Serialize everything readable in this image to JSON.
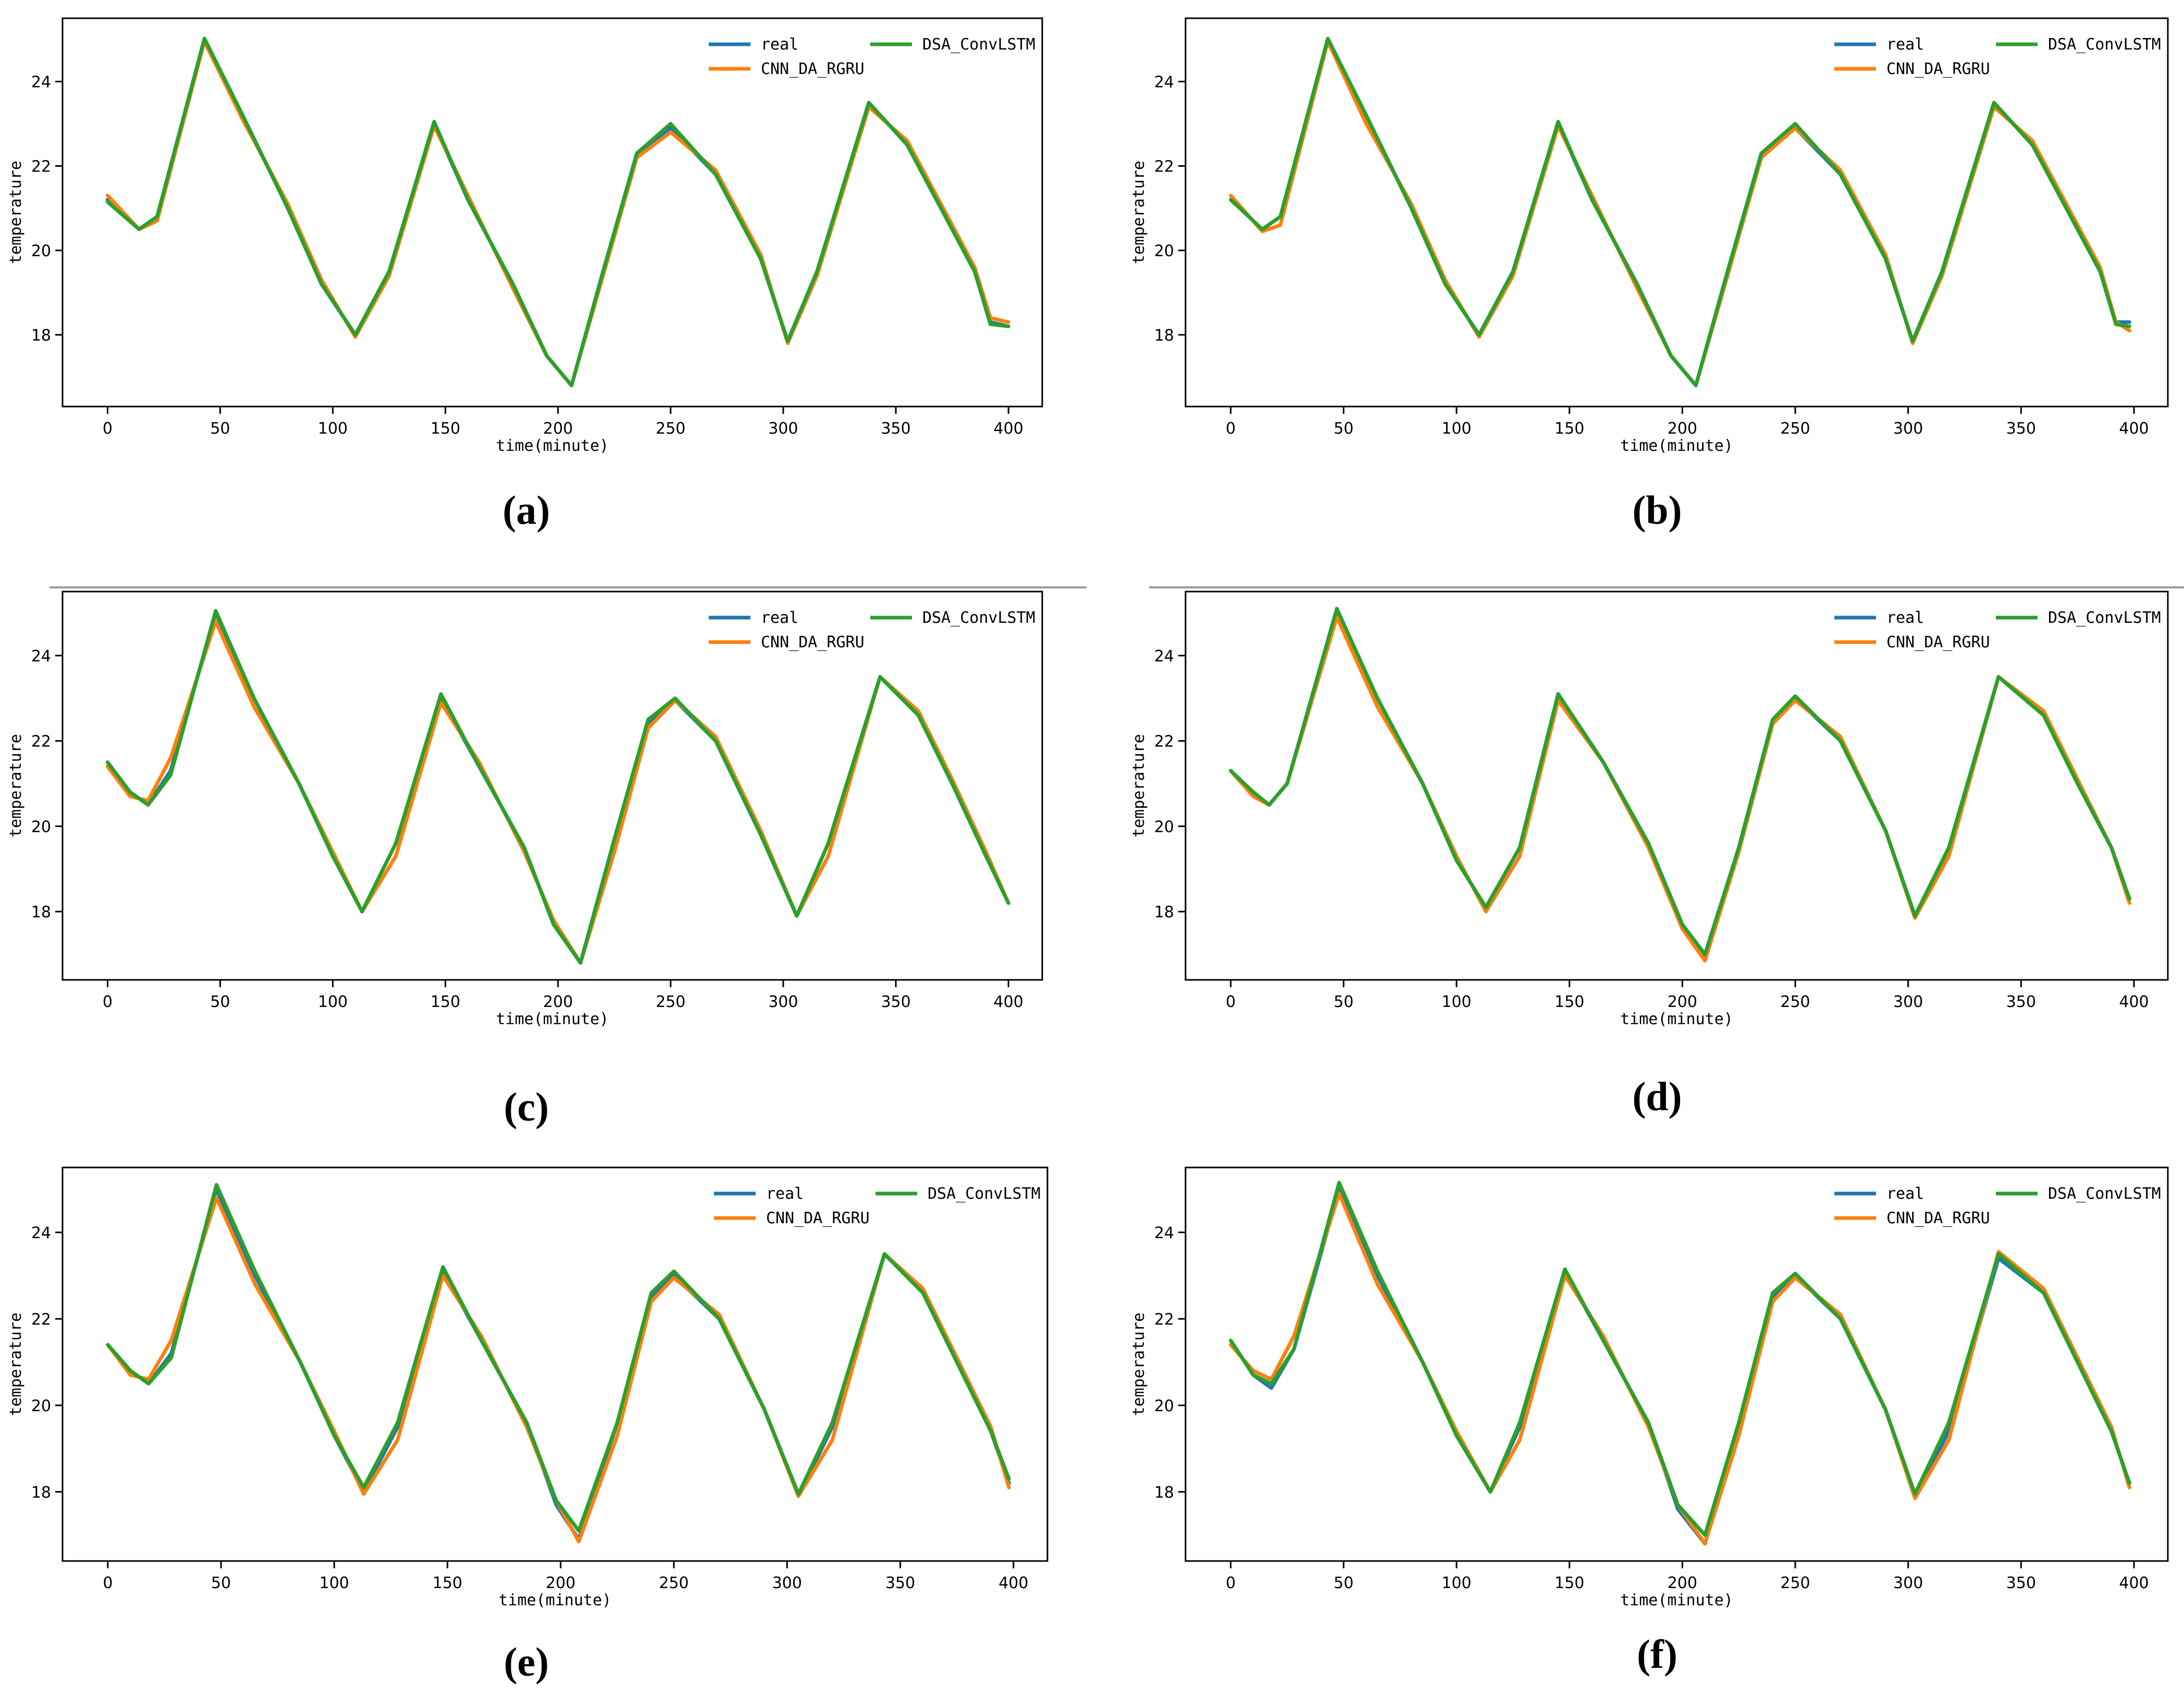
{
  "colors": {
    "real": "#1f77b4",
    "cnn": "#ff7f0e",
    "dsa": "#2ca02c",
    "axis": "#000000",
    "separator": "#9a9a9a"
  },
  "chart_data": [
    {
      "type": "line",
      "panel": "(a)",
      "xlabel": "time(minute)",
      "ylabel": "temperature",
      "xlim": [
        -20,
        415
      ],
      "ylim": [
        16.3,
        25.5
      ],
      "xticks": [
        0,
        50,
        100,
        150,
        200,
        250,
        300,
        350,
        400
      ],
      "yticks": [
        18,
        20,
        22,
        24
      ],
      "grid": false,
      "legend": "top-right",
      "legend_entries": [
        "real",
        "CNN_DA_RGRU",
        "DSA_ConvLSTM"
      ],
      "x": [
        0,
        14,
        22,
        43,
        60,
        80,
        95,
        110,
        125,
        145,
        160,
        180,
        195,
        206,
        220,
        235,
        250,
        270,
        290,
        302,
        315,
        338,
        355,
        370,
        385,
        392,
        400
      ],
      "series": [
        {
          "name": "real",
          "values": [
            21.2,
            20.5,
            20.8,
            25.0,
            23.2,
            21.0,
            19.2,
            18.0,
            19.5,
            23.0,
            21.2,
            19.2,
            17.5,
            16.8,
            19.5,
            22.3,
            22.9,
            21.8,
            19.8,
            17.85,
            19.5,
            23.5,
            22.5,
            21.0,
            19.5,
            18.3,
            18.2
          ]
        },
        {
          "name": "CNN_DA_RGRU",
          "values": [
            21.3,
            20.5,
            20.7,
            24.95,
            23.1,
            21.1,
            19.3,
            17.95,
            19.4,
            22.95,
            21.3,
            19.1,
            17.5,
            16.8,
            19.4,
            22.2,
            22.8,
            21.9,
            19.9,
            17.8,
            19.4,
            23.4,
            22.6,
            21.1,
            19.6,
            18.4,
            18.3
          ]
        },
        {
          "name": "DSA_ConvLSTM",
          "values": [
            21.15,
            20.5,
            20.8,
            25.02,
            23.2,
            21.0,
            19.2,
            18.0,
            19.5,
            23.05,
            21.2,
            19.2,
            17.5,
            16.8,
            19.5,
            22.3,
            23.0,
            21.8,
            19.8,
            17.85,
            19.5,
            23.5,
            22.5,
            21.0,
            19.5,
            18.25,
            18.2
          ]
        }
      ]
    },
    {
      "type": "line",
      "panel": "(b)",
      "xlabel": "time(minute)",
      "ylabel": "temperature",
      "xlim": [
        -20,
        415
      ],
      "ylim": [
        16.3,
        25.5
      ],
      "xticks": [
        0,
        50,
        100,
        150,
        200,
        250,
        300,
        350,
        400
      ],
      "yticks": [
        18,
        20,
        22,
        24
      ],
      "grid": false,
      "legend": "top-right",
      "legend_entries": [
        "real",
        "CNN_DA_RGRU",
        "DSA_ConvLSTM"
      ],
      "x": [
        0,
        14,
        22,
        43,
        60,
        80,
        95,
        110,
        125,
        145,
        160,
        180,
        195,
        206,
        220,
        235,
        250,
        270,
        290,
        302,
        315,
        338,
        355,
        370,
        385,
        392,
        398
      ],
      "series": [
        {
          "name": "real",
          "values": [
            21.2,
            20.5,
            20.8,
            25.0,
            23.2,
            21.0,
            19.2,
            18.0,
            19.5,
            23.0,
            21.2,
            19.2,
            17.5,
            16.8,
            19.5,
            22.3,
            22.9,
            21.8,
            19.8,
            17.85,
            19.5,
            23.5,
            22.5,
            21.0,
            19.5,
            18.3,
            18.3
          ]
        },
        {
          "name": "CNN_DA_RGRU",
          "values": [
            21.3,
            20.45,
            20.6,
            24.95,
            23.0,
            21.1,
            19.3,
            17.95,
            19.4,
            22.95,
            21.3,
            19.1,
            17.5,
            16.8,
            19.4,
            22.2,
            22.9,
            21.9,
            19.9,
            17.8,
            19.4,
            23.4,
            22.6,
            21.1,
            19.6,
            18.3,
            18.1
          ]
        },
        {
          "name": "DSA_ConvLSTM",
          "values": [
            21.2,
            20.5,
            20.8,
            25.02,
            23.2,
            21.0,
            19.2,
            18.0,
            19.5,
            23.05,
            21.2,
            19.2,
            17.5,
            16.8,
            19.5,
            22.3,
            23.0,
            21.8,
            19.8,
            17.85,
            19.5,
            23.5,
            22.5,
            21.0,
            19.5,
            18.25,
            18.2
          ]
        }
      ]
    },
    {
      "type": "line",
      "panel": "(c)",
      "xlabel": "time(minute)",
      "ylabel": "temperature",
      "xlim": [
        -20,
        415
      ],
      "ylim": [
        16.4,
        25.5
      ],
      "xticks": [
        0,
        50,
        100,
        150,
        200,
        250,
        300,
        350,
        400
      ],
      "yticks": [
        18,
        20,
        22,
        24
      ],
      "grid": false,
      "legend": "top-right",
      "legend_entries": [
        "real",
        "CNN_DA_RGRU",
        "DSA_ConvLSTM"
      ],
      "x": [
        0,
        10,
        18,
        28,
        48,
        65,
        85,
        100,
        113,
        128,
        148,
        165,
        185,
        198,
        210,
        225,
        240,
        252,
        270,
        290,
        306,
        320,
        343,
        360,
        375,
        390,
        400
      ],
      "series": [
        {
          "name": "real",
          "values": [
            21.5,
            20.8,
            20.5,
            21.3,
            25.0,
            23.0,
            21.0,
            19.3,
            18.0,
            19.6,
            23.0,
            21.4,
            19.5,
            17.7,
            16.8,
            19.7,
            22.4,
            22.95,
            22.0,
            19.8,
            17.9,
            19.6,
            23.5,
            22.6,
            21.0,
            19.3,
            18.2
          ]
        },
        {
          "name": "CNN_DA_RGRU",
          "values": [
            21.4,
            20.7,
            20.6,
            21.6,
            24.8,
            22.8,
            21.0,
            19.4,
            18.0,
            19.3,
            22.9,
            21.5,
            19.4,
            17.8,
            16.8,
            19.4,
            22.3,
            22.95,
            22.1,
            19.9,
            17.9,
            19.3,
            23.5,
            22.7,
            21.1,
            19.4,
            18.2
          ]
        },
        {
          "name": "DSA_ConvLSTM",
          "values": [
            21.5,
            20.8,
            20.5,
            21.2,
            25.05,
            23.0,
            21.0,
            19.3,
            18.0,
            19.6,
            23.1,
            21.4,
            19.5,
            17.7,
            16.8,
            19.7,
            22.5,
            23.0,
            22.0,
            19.8,
            17.9,
            19.6,
            23.5,
            22.6,
            21.0,
            19.3,
            18.2
          ]
        }
      ]
    },
    {
      "type": "line",
      "panel": "(d)",
      "xlabel": "time(minute)",
      "ylabel": "temperature",
      "xlim": [
        -20,
        415
      ],
      "ylim": [
        16.4,
        25.5
      ],
      "xticks": [
        0,
        50,
        100,
        150,
        200,
        250,
        300,
        350,
        400
      ],
      "yticks": [
        18,
        20,
        22,
        24
      ],
      "grid": false,
      "legend": "top-right",
      "legend_entries": [
        "real",
        "CNN_DA_RGRU",
        "DSA_ConvLSTM"
      ],
      "x": [
        0,
        10,
        17,
        25,
        47,
        65,
        85,
        100,
        113,
        128,
        145,
        165,
        185,
        200,
        210,
        225,
        240,
        250,
        270,
        290,
        303,
        318,
        340,
        360,
        375,
        390,
        398
      ],
      "series": [
        {
          "name": "real",
          "values": [
            21.3,
            20.8,
            20.5,
            21.0,
            25.05,
            23.0,
            21.0,
            19.2,
            18.1,
            19.5,
            23.1,
            21.5,
            19.6,
            17.6,
            16.9,
            19.5,
            22.5,
            23.0,
            22.0,
            19.9,
            17.9,
            19.5,
            23.5,
            22.6,
            21.0,
            19.5,
            18.3
          ]
        },
        {
          "name": "CNN_DA_RGRU",
          "values": [
            21.3,
            20.7,
            20.5,
            21.0,
            24.9,
            22.8,
            21.0,
            19.3,
            18.0,
            19.3,
            22.95,
            21.5,
            19.5,
            17.6,
            16.85,
            19.4,
            22.4,
            22.95,
            22.1,
            19.9,
            17.85,
            19.3,
            23.5,
            22.7,
            21.1,
            19.5,
            18.2
          ]
        },
        {
          "name": "DSA_ConvLSTM",
          "values": [
            21.3,
            20.8,
            20.5,
            21.0,
            25.1,
            23.0,
            21.0,
            19.2,
            18.1,
            19.5,
            23.1,
            21.5,
            19.6,
            17.7,
            17.0,
            19.5,
            22.5,
            23.05,
            22.0,
            19.9,
            17.9,
            19.5,
            23.5,
            22.6,
            21.0,
            19.5,
            18.3
          ]
        }
      ]
    },
    {
      "type": "line",
      "panel": "(e)",
      "xlabel": "time(minute)",
      "ylabel": "temperature",
      "xlim": [
        -20,
        415
      ],
      "ylim": [
        16.4,
        25.5
      ],
      "xticks": [
        0,
        50,
        100,
        150,
        200,
        250,
        300,
        350,
        400
      ],
      "yticks": [
        18,
        20,
        22,
        24
      ],
      "grid": false,
      "legend": "top-right",
      "legend_entries": [
        "real",
        "CNN_DA_RGRU",
        "DSA_ConvLSTM"
      ],
      "x": [
        0,
        10,
        18,
        28,
        48,
        65,
        85,
        100,
        113,
        128,
        148,
        165,
        185,
        198,
        208,
        225,
        240,
        250,
        270,
        290,
        305,
        320,
        343,
        360,
        375,
        390,
        398
      ],
      "series": [
        {
          "name": "real",
          "values": [
            21.4,
            20.8,
            20.5,
            21.2,
            25.0,
            23.0,
            21.0,
            19.3,
            18.0,
            19.5,
            23.1,
            21.5,
            19.6,
            17.7,
            16.9,
            19.6,
            22.5,
            23.0,
            22.0,
            19.9,
            17.9,
            19.5,
            23.5,
            22.6,
            21.0,
            19.4,
            18.2
          ]
        },
        {
          "name": "CNN_DA_RGRU",
          "values": [
            21.4,
            20.7,
            20.6,
            21.5,
            24.8,
            22.8,
            21.0,
            19.4,
            17.95,
            19.2,
            23.0,
            21.6,
            19.5,
            17.8,
            16.85,
            19.3,
            22.4,
            22.95,
            22.1,
            19.9,
            17.9,
            19.2,
            23.5,
            22.7,
            21.1,
            19.5,
            18.1
          ]
        },
        {
          "name": "DSA_ConvLSTM",
          "values": [
            21.4,
            20.8,
            20.5,
            21.1,
            25.1,
            23.1,
            21.0,
            19.3,
            18.1,
            19.6,
            23.2,
            21.5,
            19.6,
            17.8,
            17.1,
            19.6,
            22.6,
            23.1,
            22.0,
            19.9,
            17.95,
            19.6,
            23.5,
            22.6,
            21.0,
            19.4,
            18.3
          ]
        }
      ]
    },
    {
      "type": "line",
      "panel": "(f)",
      "xlabel": "time(minute)",
      "ylabel": "temperature",
      "xlim": [
        -20,
        415
      ],
      "ylim": [
        16.4,
        25.5
      ],
      "xticks": [
        0,
        50,
        100,
        150,
        200,
        250,
        300,
        350,
        400
      ],
      "yticks": [
        18,
        20,
        22,
        24
      ],
      "grid": false,
      "legend": "top-right",
      "legend_entries": [
        "real",
        "CNN_DA_RGRU",
        "DSA_ConvLSTM"
      ],
      "x": [
        0,
        10,
        18,
        28,
        48,
        65,
        85,
        100,
        115,
        128,
        148,
        165,
        185,
        198,
        210,
        225,
        240,
        250,
        270,
        290,
        303,
        318,
        340,
        360,
        375,
        390,
        398
      ],
      "series": [
        {
          "name": "real",
          "values": [
            21.5,
            20.7,
            20.4,
            21.3,
            25.0,
            23.0,
            21.0,
            19.3,
            18.0,
            19.5,
            23.1,
            21.5,
            19.6,
            17.6,
            16.8,
            19.5,
            22.5,
            23.0,
            22.0,
            19.9,
            17.9,
            19.4,
            23.4,
            22.6,
            21.0,
            19.4,
            18.2
          ]
        },
        {
          "name": "CNN_DA_RGRU",
          "values": [
            21.4,
            20.8,
            20.6,
            21.6,
            24.9,
            22.8,
            21.0,
            19.4,
            18.0,
            19.2,
            23.0,
            21.6,
            19.5,
            17.7,
            16.8,
            19.3,
            22.4,
            22.95,
            22.1,
            19.9,
            17.85,
            19.2,
            23.55,
            22.7,
            21.1,
            19.5,
            18.1
          ]
        },
        {
          "name": "DSA_ConvLSTM",
          "values": [
            21.5,
            20.7,
            20.5,
            21.3,
            25.15,
            23.1,
            21.0,
            19.3,
            18.0,
            19.6,
            23.15,
            21.5,
            19.6,
            17.7,
            17.0,
            19.6,
            22.6,
            23.05,
            22.0,
            19.9,
            17.95,
            19.6,
            23.5,
            22.6,
            21.0,
            19.4,
            18.2
          ]
        }
      ]
    }
  ]
}
